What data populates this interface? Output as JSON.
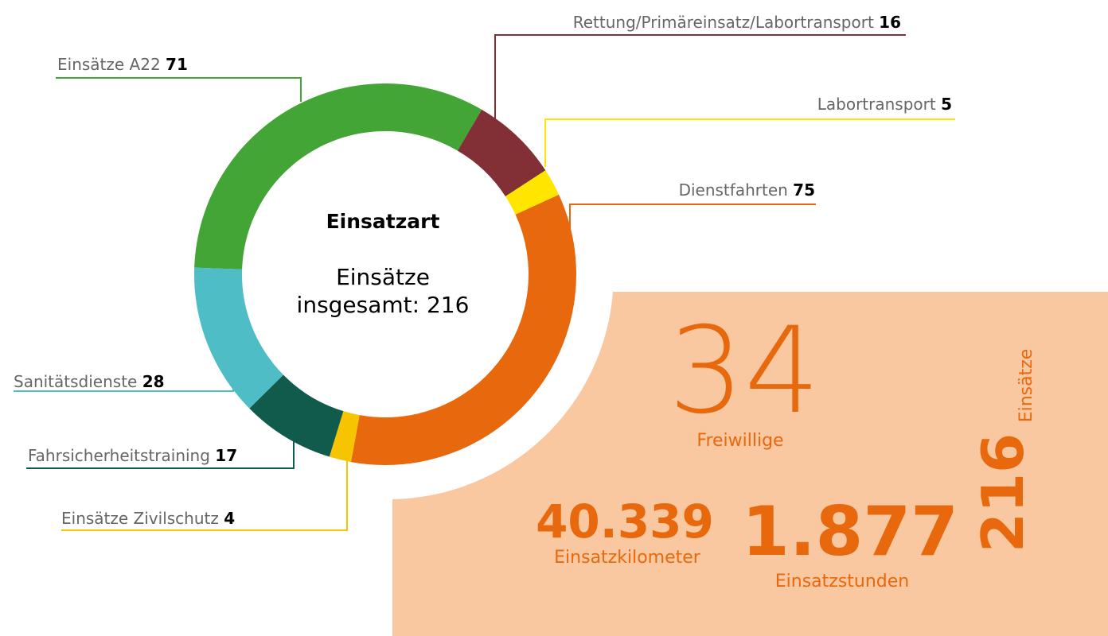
{
  "chart_data": {
    "type": "donut",
    "title": "Einsatzart",
    "subtitle_lines": [
      "Einsätze",
      "insgesamt: 216"
    ],
    "categories": [
      "Einsätze A22",
      "Rettung/Primäreinsatz/Labortransport",
      "Labortransport",
      "Dienstfahrten",
      "Einsätze Zivilschutz",
      "Fahrsicherheitstraining",
      "Sanitätsdienste"
    ],
    "values": [
      71,
      16,
      5,
      75,
      4,
      17,
      28
    ],
    "colors": [
      "#43a535",
      "#832f36",
      "#ffe600",
      "#e8690d",
      "#f6c400",
      "#115b4d",
      "#4fbdc6"
    ]
  },
  "stats": {
    "volunteers": {
      "value": "34",
      "label": "Freiwillige"
    },
    "kilometers": {
      "value": "40.339",
      "label": "Einsatzkilometer"
    },
    "hours": {
      "value": "1.877",
      "label": "Einsatzstunden"
    },
    "missions": {
      "value": "216",
      "label": "Einsätze"
    }
  }
}
